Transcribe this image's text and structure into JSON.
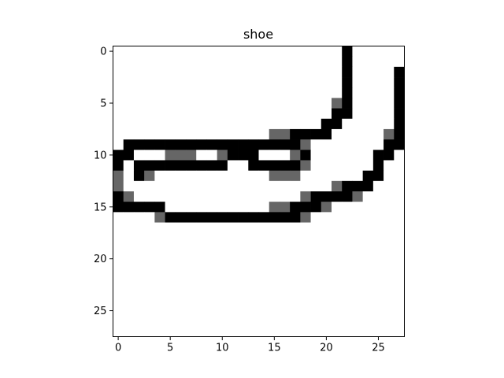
{
  "chart_data": {
    "type": "heatmap",
    "title": "shoe",
    "xlabel": "",
    "ylabel": "",
    "xlim": [
      -0.5,
      27.5
    ],
    "ylim": [
      27.5,
      -0.5
    ],
    "xticks": [
      0,
      5,
      10,
      15,
      20,
      25
    ],
    "yticks": [
      0,
      5,
      10,
      15,
      20,
      25
    ],
    "colormap": "gray_r",
    "value_range": [
      0,
      1
    ],
    "grid": false,
    "rows": 28,
    "cols": 28,
    "pixels": [
      [
        0,
        0,
        0,
        0,
        0,
        0,
        0,
        0,
        0,
        0,
        0,
        0,
        0,
        0,
        0,
        0,
        0,
        0,
        0,
        0,
        0,
        0,
        1,
        0,
        0,
        0,
        0,
        0
      ],
      [
        0,
        0,
        0,
        0,
        0,
        0,
        0,
        0,
        0,
        0,
        0,
        0,
        0,
        0,
        0,
        0,
        0,
        0,
        0,
        0,
        0,
        0,
        1,
        0,
        0,
        0,
        0,
        0
      ],
      [
        0,
        0,
        0,
        0,
        0,
        0,
        0,
        0,
        0,
        0,
        0,
        0,
        0,
        0,
        0,
        0,
        0,
        0,
        0,
        0,
        0,
        0,
        1,
        0,
        0,
        0,
        0,
        1
      ],
      [
        0,
        0,
        0,
        0,
        0,
        0,
        0,
        0,
        0,
        0,
        0,
        0,
        0,
        0,
        0,
        0,
        0,
        0,
        0,
        0,
        0,
        0,
        1,
        0,
        0,
        0,
        0,
        1
      ],
      [
        0,
        0,
        0,
        0,
        0,
        0,
        0,
        0,
        0,
        0,
        0,
        0,
        0,
        0,
        0,
        0,
        0,
        0,
        0,
        0,
        0,
        0,
        1,
        0,
        0,
        0,
        0,
        1
      ],
      [
        0,
        0,
        0,
        0,
        0,
        0,
        0,
        0,
        0,
        0,
        0,
        0,
        0,
        0,
        0,
        0,
        0,
        0,
        0,
        0,
        0,
        0.6,
        1,
        0,
        0,
        0,
        0,
        1
      ],
      [
        0,
        0,
        0,
        0,
        0,
        0,
        0,
        0,
        0,
        0,
        0,
        0,
        0,
        0,
        0,
        0,
        0,
        0,
        0,
        0,
        0,
        1,
        1,
        0,
        0,
        0,
        0,
        1
      ],
      [
        0,
        0,
        0,
        0,
        0,
        0,
        0,
        0,
        0,
        0,
        0,
        0,
        0,
        0,
        0,
        0,
        0,
        0,
        0,
        0,
        1,
        1,
        0,
        0,
        0,
        0,
        0,
        1
      ],
      [
        0,
        0,
        0,
        0,
        0,
        0,
        0,
        0,
        0,
        0,
        0,
        0,
        0,
        0,
        0,
        0.6,
        0.6,
        1,
        1,
        1,
        1,
        0,
        0,
        0,
        0,
        0,
        0.6,
        1
      ],
      [
        0,
        1,
        1,
        1,
        1,
        1,
        1,
        1,
        1,
        1,
        1,
        1,
        1,
        1,
        1,
        1,
        1,
        1,
        0.6,
        0,
        0,
        0,
        0,
        0,
        0,
        0,
        1,
        1
      ],
      [
        1,
        1,
        0,
        0,
        0,
        0.6,
        0.6,
        0.6,
        0,
        0,
        0.6,
        1,
        1,
        1,
        0,
        0,
        0,
        0.6,
        1,
        0,
        0,
        0,
        0,
        0,
        0,
        1,
        1,
        0
      ],
      [
        1,
        0,
        1,
        1,
        1,
        1,
        1,
        1,
        1,
        1,
        1,
        0,
        0,
        1,
        1,
        1,
        1,
        1,
        0.6,
        0,
        0,
        0,
        0,
        0,
        0,
        1,
        0,
        0
      ],
      [
        0.6,
        0,
        1,
        0.6,
        0,
        0,
        0,
        0,
        0,
        0,
        0,
        0,
        0,
        0,
        0,
        0.6,
        0.6,
        0.6,
        0,
        0,
        0,
        0,
        0,
        0,
        1,
        1,
        0,
        0
      ],
      [
        0.6,
        0,
        0,
        0,
        0,
        0,
        0,
        0,
        0,
        0,
        0,
        0,
        0,
        0,
        0,
        0,
        0,
        0,
        0,
        0,
        0,
        0.6,
        1,
        1,
        1,
        0,
        0,
        0
      ],
      [
        1,
        0.6,
        0,
        0,
        0,
        0,
        0,
        0,
        0,
        0,
        0,
        0,
        0,
        0,
        0,
        0,
        0,
        0,
        0.6,
        1,
        1,
        1,
        1,
        0.6,
        0,
        0,
        0,
        0
      ],
      [
        1,
        1,
        1,
        1,
        1,
        0,
        0,
        0,
        0,
        0,
        0,
        0,
        0,
        0,
        0,
        0.6,
        0.6,
        1,
        1,
        1,
        0.6,
        0,
        0,
        0,
        0,
        0,
        0,
        0
      ],
      [
        0,
        0,
        0,
        0,
        0.6,
        1,
        1,
        1,
        1,
        1,
        1,
        1,
        1,
        1,
        1,
        1,
        1,
        1,
        0.6,
        0,
        0,
        0,
        0,
        0,
        0,
        0,
        0,
        0
      ],
      [
        0,
        0,
        0,
        0,
        0,
        0,
        0,
        0,
        0,
        0,
        0,
        0,
        0,
        0,
        0,
        0,
        0,
        0,
        0,
        0,
        0,
        0,
        0,
        0,
        0,
        0,
        0,
        0
      ],
      [
        0,
        0,
        0,
        0,
        0,
        0,
        0,
        0,
        0,
        0,
        0,
        0,
        0,
        0,
        0,
        0,
        0,
        0,
        0,
        0,
        0,
        0,
        0,
        0,
        0,
        0,
        0,
        0
      ],
      [
        0,
        0,
        0,
        0,
        0,
        0,
        0,
        0,
        0,
        0,
        0,
        0,
        0,
        0,
        0,
        0,
        0,
        0,
        0,
        0,
        0,
        0,
        0,
        0,
        0,
        0,
        0,
        0
      ],
      [
        0,
        0,
        0,
        0,
        0,
        0,
        0,
        0,
        0,
        0,
        0,
        0,
        0,
        0,
        0,
        0,
        0,
        0,
        0,
        0,
        0,
        0,
        0,
        0,
        0,
        0,
        0,
        0
      ],
      [
        0,
        0,
        0,
        0,
        0,
        0,
        0,
        0,
        0,
        0,
        0,
        0,
        0,
        0,
        0,
        0,
        0,
        0,
        0,
        0,
        0,
        0,
        0,
        0,
        0,
        0,
        0,
        0
      ],
      [
        0,
        0,
        0,
        0,
        0,
        0,
        0,
        0,
        0,
        0,
        0,
        0,
        0,
        0,
        0,
        0,
        0,
        0,
        0,
        0,
        0,
        0,
        0,
        0,
        0,
        0,
        0,
        0
      ],
      [
        0,
        0,
        0,
        0,
        0,
        0,
        0,
        0,
        0,
        0,
        0,
        0,
        0,
        0,
        0,
        0,
        0,
        0,
        0,
        0,
        0,
        0,
        0,
        0,
        0,
        0,
        0,
        0
      ],
      [
        0,
        0,
        0,
        0,
        0,
        0,
        0,
        0,
        0,
        0,
        0,
        0,
        0,
        0,
        0,
        0,
        0,
        0,
        0,
        0,
        0,
        0,
        0,
        0,
        0,
        0,
        0,
        0
      ],
      [
        0,
        0,
        0,
        0,
        0,
        0,
        0,
        0,
        0,
        0,
        0,
        0,
        0,
        0,
        0,
        0,
        0,
        0,
        0,
        0,
        0,
        0,
        0,
        0,
        0,
        0,
        0,
        0
      ],
      [
        0,
        0,
        0,
        0,
        0,
        0,
        0,
        0,
        0,
        0,
        0,
        0,
        0,
        0,
        0,
        0,
        0,
        0,
        0,
        0,
        0,
        0,
        0,
        0,
        0,
        0,
        0,
        0
      ],
      [
        0,
        0,
        0,
        0,
        0,
        0,
        0,
        0,
        0,
        0,
        0,
        0,
        0,
        0,
        0,
        0,
        0,
        0,
        0,
        0,
        0,
        0,
        0,
        0,
        0,
        0,
        0,
        0
      ]
    ]
  }
}
